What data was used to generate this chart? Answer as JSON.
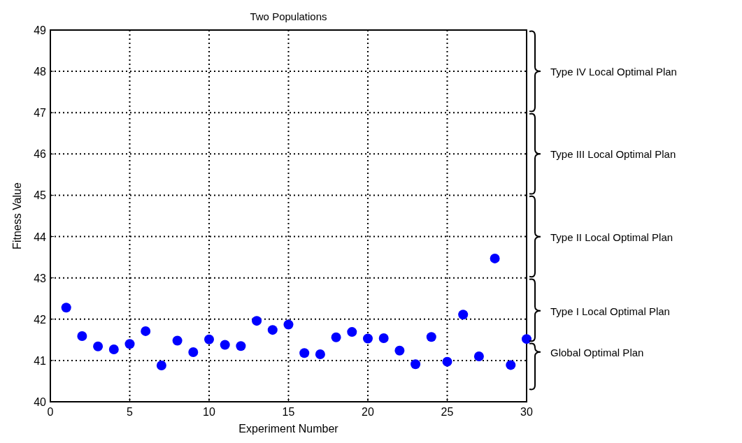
{
  "chart_data": {
    "type": "scatter",
    "title": "Two Populations",
    "xlabel": "Experiment Number",
    "ylabel": "Fitness Value",
    "x": [
      1,
      2,
      3,
      4,
      5,
      6,
      7,
      8,
      9,
      10,
      11,
      12,
      13,
      14,
      15,
      16,
      17,
      18,
      19,
      20,
      21,
      22,
      23,
      24,
      25,
      26,
      27,
      28,
      29,
      30
    ],
    "series": [
      {
        "color": "#0000ff",
        "values": [
          42.28,
          41.59,
          41.34,
          41.27,
          41.4,
          41.71,
          40.88,
          41.48,
          41.2,
          41.51,
          41.38,
          41.35,
          41.96,
          41.74,
          41.87,
          41.18,
          41.15,
          41.56,
          41.69,
          41.53,
          41.54,
          41.24,
          40.91,
          41.57,
          40.97,
          42.11,
          41.1,
          43.47,
          40.89,
          41.52
        ]
      }
    ],
    "xlim": [
      0,
      30
    ],
    "xticks": [
      0,
      5,
      10,
      15,
      20,
      25,
      30
    ],
    "ylim": [
      40,
      49
    ],
    "yticks": [
      40,
      41,
      42,
      43,
      44,
      45,
      46,
      47,
      48,
      49
    ],
    "grid": true,
    "marker": "circle",
    "annotations": [
      "Type IV Local Optimal Plan",
      "Type III Local Optimal Plan",
      "Type II Local Optimal Plan",
      "Type I Local Optimal Plan",
      "Global Optimal Plan"
    ]
  }
}
